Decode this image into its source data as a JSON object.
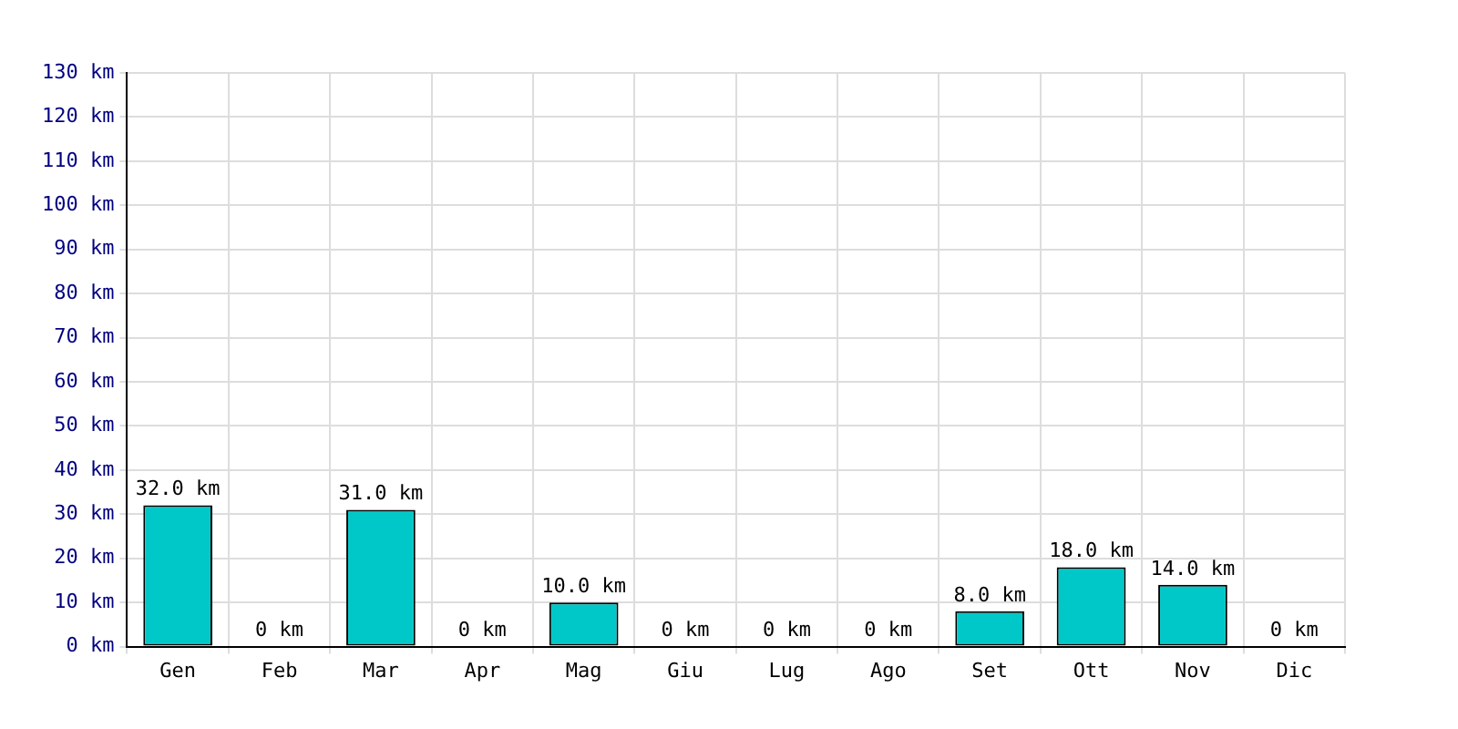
{
  "chart_data": {
    "type": "bar",
    "categories": [
      "Gen",
      "Feb",
      "Mar",
      "Apr",
      "Mag",
      "Giu",
      "Lug",
      "Ago",
      "Set",
      "Ott",
      "Nov",
      "Dic"
    ],
    "values": [
      32,
      0,
      31,
      0,
      10,
      0,
      0,
      0,
      8,
      18,
      14,
      0
    ],
    "value_labels": [
      "32.0 km",
      "0 km",
      "31.0 km",
      "0 km",
      "10.0 km",
      "0 km",
      "0 km",
      "0 km",
      "8.0 km",
      "18.0 km",
      "14.0 km",
      "0 km"
    ],
    "color": "#00c8c8",
    "ylim": [
      0,
      130
    ],
    "yticks": [
      {
        "value": 0,
        "label": "0 km"
      },
      {
        "value": 10,
        "label": "10 km"
      },
      {
        "value": 20,
        "label": "20 km"
      },
      {
        "value": 30,
        "label": "30 km"
      },
      {
        "value": 40,
        "label": "40 km"
      },
      {
        "value": 50,
        "label": "50 km"
      },
      {
        "value": 60,
        "label": "60 km"
      },
      {
        "value": 70,
        "label": "70 km"
      },
      {
        "value": 80,
        "label": "80 km"
      },
      {
        "value": 90,
        "label": "90 km"
      },
      {
        "value": 100,
        "label": "100 km"
      },
      {
        "value": 110,
        "label": "110 km"
      },
      {
        "value": 120,
        "label": "120 km"
      },
      {
        "value": 130,
        "label": "130 km"
      }
    ],
    "grid": true
  }
}
